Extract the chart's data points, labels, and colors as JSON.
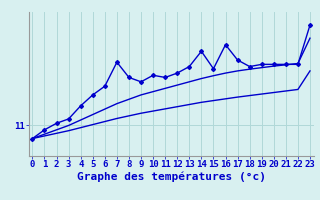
{
  "xlabel": "Graphe des températures (°c)",
  "background_color": "#d8f0f0",
  "line_color": "#0000cc",
  "grid_color": "#b0d8d8",
  "x_values": [
    0,
    1,
    2,
    3,
    4,
    5,
    6,
    7,
    8,
    9,
    10,
    11,
    12,
    13,
    14,
    15,
    16,
    17,
    18,
    19,
    20,
    21,
    22,
    23
  ],
  "y_temp": [
    10.4,
    10.8,
    11.1,
    11.3,
    11.9,
    12.4,
    12.8,
    13.9,
    13.2,
    13.0,
    13.3,
    13.2,
    13.4,
    13.7,
    14.4,
    13.6,
    14.7,
    14.0,
    13.7,
    13.8,
    13.8,
    13.8,
    13.8,
    15.6
  ],
  "y_smooth1": [
    10.4,
    10.6,
    10.8,
    11.0,
    11.25,
    11.5,
    11.75,
    12.0,
    12.2,
    12.4,
    12.55,
    12.7,
    12.85,
    13.0,
    13.15,
    13.28,
    13.4,
    13.5,
    13.58,
    13.65,
    13.72,
    13.78,
    13.84,
    15.0
  ],
  "y_smooth2": [
    10.4,
    10.52,
    10.64,
    10.76,
    10.9,
    11.04,
    11.18,
    11.32,
    11.44,
    11.56,
    11.66,
    11.76,
    11.86,
    11.96,
    12.06,
    12.14,
    12.22,
    12.3,
    12.37,
    12.44,
    12.51,
    12.58,
    12.65,
    13.5
  ],
  "y_tick_value": 11,
  "y_tick_label": "11",
  "xlim": [
    -0.3,
    23.3
  ],
  "ylim": [
    9.6,
    16.2
  ],
  "xlabel_fontsize": 8,
  "tick_fontsize": 6.5,
  "xtick_labels": [
    "0",
    "1",
    "2",
    "3",
    "4",
    "5",
    "6",
    "7",
    "8",
    "9",
    "10",
    "11",
    "12",
    "13",
    "14",
    "15",
    "16",
    "17",
    "18",
    "19",
    "20",
    "21",
    "22",
    "23"
  ]
}
